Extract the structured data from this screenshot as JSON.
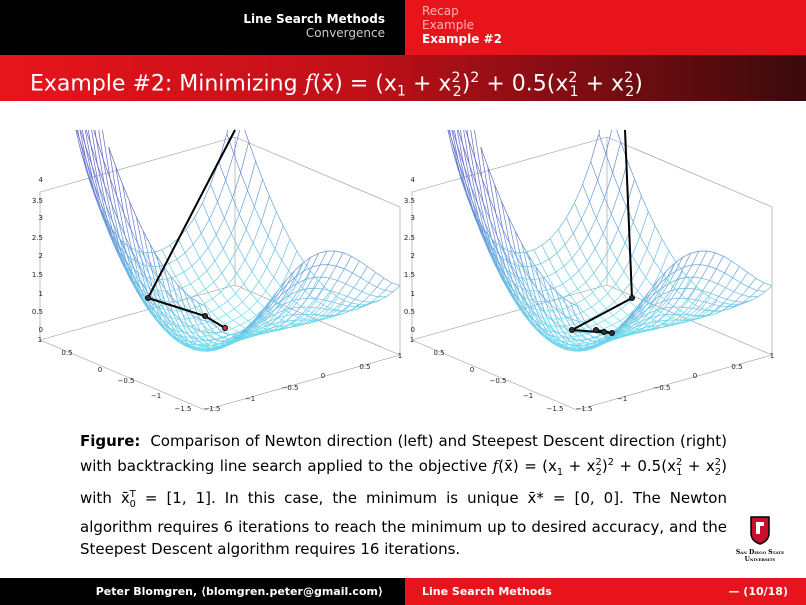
{
  "header": {
    "section": "Line Search Methods",
    "subsection": "Convergence",
    "nav": [
      "Recap",
      "Example",
      "Example #2"
    ]
  },
  "title": [
    "Example #2: Minimizing ",
    "f",
    "(x̄) = (x",
    "1",
    " + x",
    "2",
    "2",
    ")",
    "2",
    " + 0.5(x",
    "1",
    "2",
    " + x",
    "2",
    "2",
    ")"
  ],
  "plot_axes": {
    "z": [
      "4",
      "3.5",
      "3",
      "2.5",
      "2",
      "1.5",
      "1",
      "0.5",
      "0"
    ],
    "x1": [
      "1",
      "0.5",
      "0",
      "−0.5",
      "−1",
      "−1.5"
    ],
    "x2": [
      "−1.5",
      "−1",
      "−0.5",
      "0",
      "0.5",
      "1"
    ]
  },
  "caption": [
    "Figure:",
    "Comparison of Newton direction (left) and Steepest Descent direction (right) with backtracking line search applied to the objective ",
    "f",
    "(x̄) = (x",
    "1",
    " + x",
    "2",
    "2",
    ")",
    "2",
    " + 0.5(x",
    "1",
    "2",
    " + x",
    "2",
    "2",
    ") with x̄",
    "0",
    "T",
    " = [1, 1]. In this case, the minimum is unique x̄* = [0, 0]. The Newton algorithm requires 6 iterations to reach the minimum up to desired accuracy, and the Steepest Descent algorithm requires 16 iterations."
  ],
  "logo": [
    "San Diego State",
    "University"
  ],
  "footer": {
    "author": "Peter Blomgren, ⟨blomgren.peter@gmail.com⟩",
    "talk": "Line Search Methods",
    "page": "— (10/18)"
  }
}
